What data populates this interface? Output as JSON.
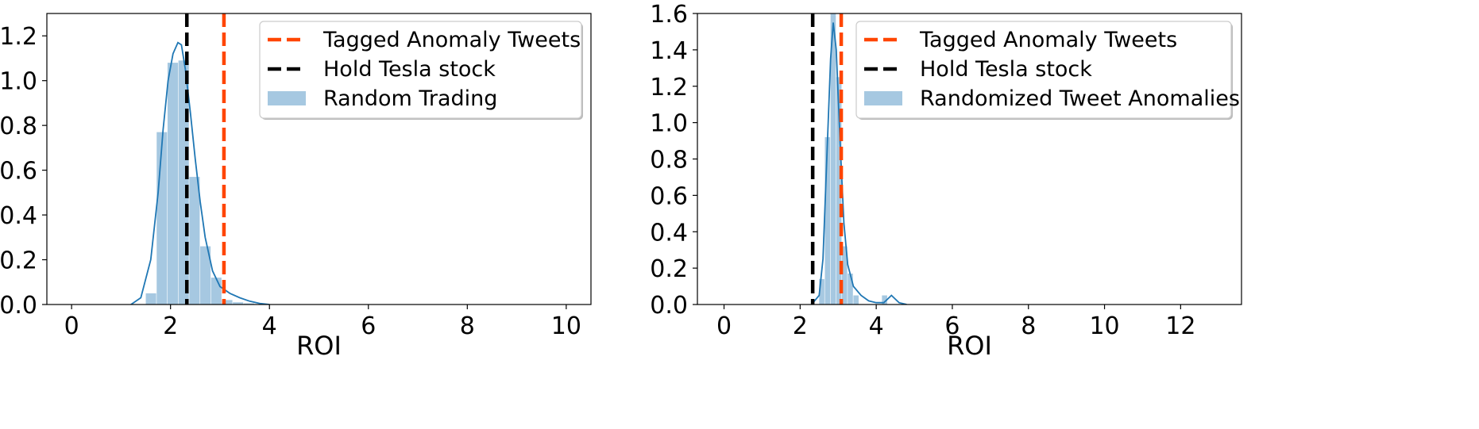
{
  "chart_data": [
    {
      "type": "histogram",
      "xlabel": "ROI",
      "ylabel": "",
      "xlim": [
        -0.5,
        10.5
      ],
      "ylim": [
        0,
        1.3
      ],
      "xticks": [
        0,
        2,
        4,
        6,
        8,
        10
      ],
      "yticks": [
        0.0,
        0.2,
        0.4,
        0.6,
        0.8,
        1.0,
        1.2
      ],
      "grid": false,
      "legend_position": "top-right",
      "legend": [
        {
          "label": "Tagged Anomaly Tweets",
          "style": "dashed-line",
          "color": "#ff4500"
        },
        {
          "label": "Hold Tesla stock",
          "style": "dashed-line",
          "color": "#000000"
        },
        {
          "label": "Random Trading",
          "style": "patch",
          "color": "#a6c8e1"
        }
      ],
      "vlines": [
        {
          "x": 3.08,
          "color": "#ff4500"
        },
        {
          "x": 2.33,
          "color": "#000000"
        }
      ],
      "bars": {
        "color": "#a6c8e1",
        "edges": [
          1.5,
          1.72,
          1.94,
          2.16,
          2.38,
          2.6,
          2.82,
          3.04,
          3.26,
          3.48,
          3.7
        ],
        "values": [
          0.05,
          0.77,
          1.08,
          1.09,
          0.57,
          0.26,
          0.12,
          0.02,
          0.01,
          0.005
        ]
      },
      "kde": {
        "color": "#1f77b4",
        "x": [
          1.2,
          1.4,
          1.6,
          1.75,
          1.85,
          1.95,
          2.05,
          2.15,
          2.22,
          2.3,
          2.4,
          2.5,
          2.6,
          2.7,
          2.85,
          3.0,
          3.2,
          3.4,
          3.6,
          3.8,
          4.0
        ],
        "y": [
          0.0,
          0.03,
          0.2,
          0.5,
          0.78,
          1.0,
          1.12,
          1.17,
          1.16,
          1.05,
          0.86,
          0.65,
          0.46,
          0.3,
          0.15,
          0.08,
          0.05,
          0.03,
          0.015,
          0.005,
          0.0
        ]
      }
    },
    {
      "type": "histogram",
      "xlabel": "ROI",
      "ylabel": "",
      "xlim": [
        -0.7,
        13.6
      ],
      "ylim": [
        0,
        1.6
      ],
      "xticks": [
        0,
        2,
        4,
        6,
        8,
        10,
        12
      ],
      "yticks": [
        0.0,
        0.2,
        0.4,
        0.6,
        0.8,
        1.0,
        1.2,
        1.4,
        1.6
      ],
      "grid": false,
      "legend_position": "top-right",
      "legend": [
        {
          "label": "Tagged Anomaly Tweets",
          "style": "dashed-line",
          "color": "#ff4500"
        },
        {
          "label": "Hold Tesla stock",
          "style": "dashed-line",
          "color": "#000000"
        },
        {
          "label": "Randomized Tweet Anomalies",
          "style": "patch",
          "color": "#a6c8e1"
        }
      ],
      "vlines": [
        {
          "x": 3.08,
          "color": "#ff4500"
        },
        {
          "x": 2.33,
          "color": "#000000"
        }
      ],
      "bars": {
        "color": "#a6c8e1",
        "edges": [
          2.5,
          2.65,
          2.8,
          2.95,
          3.1,
          3.25,
          3.4,
          3.55,
          3.7,
          3.85,
          4.0,
          4.15,
          4.3,
          4.45
        ],
        "values": [
          0.14,
          0.92,
          1.6,
          1.25,
          0.32,
          0.17,
          0.05,
          0.0,
          0.0,
          0.0,
          0.0,
          0.05,
          0.0
        ]
      },
      "kde": {
        "color": "#1f77b4",
        "x": [
          2.3,
          2.5,
          2.6,
          2.7,
          2.8,
          2.87,
          2.95,
          3.05,
          3.15,
          3.25,
          3.4,
          3.6,
          3.8,
          4.0,
          4.2,
          4.3,
          4.4,
          4.5,
          4.6,
          4.8
        ],
        "y": [
          0.0,
          0.05,
          0.25,
          0.8,
          1.35,
          1.55,
          1.4,
          0.9,
          0.45,
          0.22,
          0.1,
          0.05,
          0.02,
          0.01,
          0.01,
          0.03,
          0.05,
          0.03,
          0.01,
          0.0
        ]
      }
    }
  ]
}
